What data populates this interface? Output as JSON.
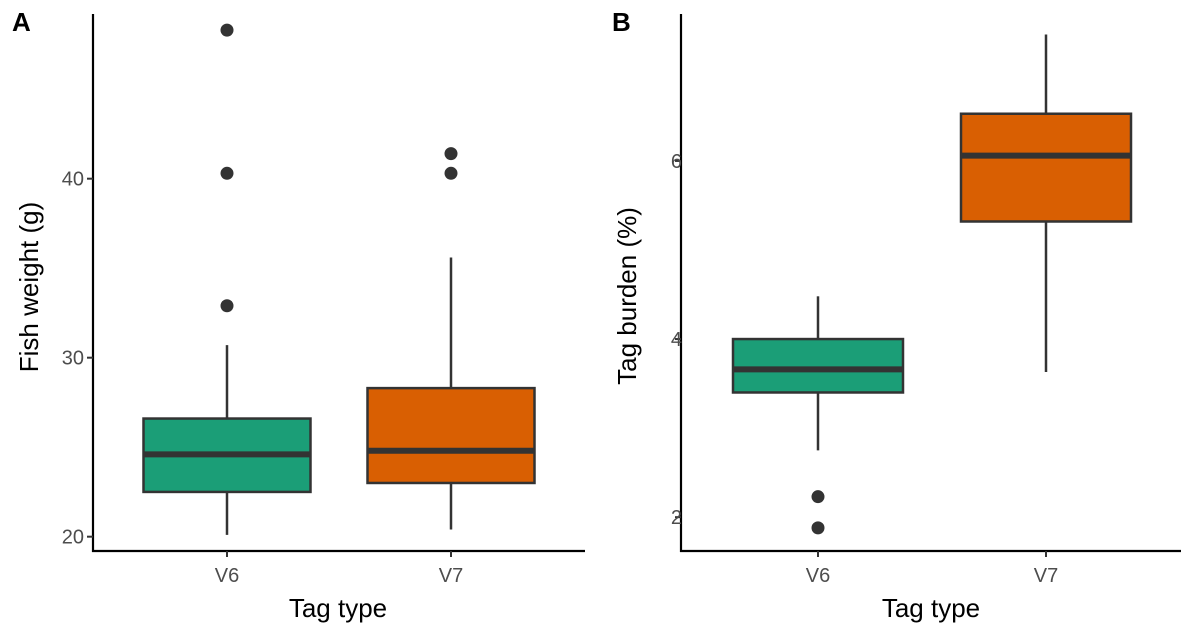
{
  "chart_data": [
    {
      "type": "box",
      "panel_label": "A",
      "xlabel": "Tag type",
      "ylabel": "Fish weight (g)",
      "ylim": [
        19.2,
        49.2
      ],
      "yticks": [
        20,
        30,
        40
      ],
      "categories": [
        "V6",
        "V7"
      ],
      "boxes": [
        {
          "category": "V6",
          "color": "#1b9e77",
          "whisker_low": 20.1,
          "q1": 22.5,
          "median": 24.6,
          "q3": 26.6,
          "whisker_high": 30.7,
          "outliers": [
            32.9,
            40.3,
            48.3
          ]
        },
        {
          "category": "V7",
          "color": "#d95f02",
          "whisker_low": 20.4,
          "q1": 23.0,
          "median": 24.8,
          "q3": 28.3,
          "whisker_high": 35.6,
          "outliers": [
            40.3,
            41.4
          ]
        }
      ]
    },
    {
      "type": "box",
      "panel_label": "B",
      "xlabel": "Tag type",
      "ylabel": "Tag burden (%)",
      "ylim": [
        1.62,
        7.65
      ],
      "yticks": [
        2,
        4,
        6
      ],
      "categories": [
        "V6",
        "V7"
      ],
      "boxes": [
        {
          "category": "V6",
          "color": "#1b9e77",
          "whisker_low": 2.75,
          "q1": 3.4,
          "median": 3.66,
          "q3": 4.0,
          "whisker_high": 4.48,
          "outliers": [
            2.23,
            1.88
          ]
        },
        {
          "category": "V7",
          "color": "#d95f02",
          "whisker_low": 3.63,
          "q1": 5.32,
          "median": 6.06,
          "q3": 6.53,
          "whisker_high": 7.42,
          "outliers": []
        }
      ]
    }
  ]
}
